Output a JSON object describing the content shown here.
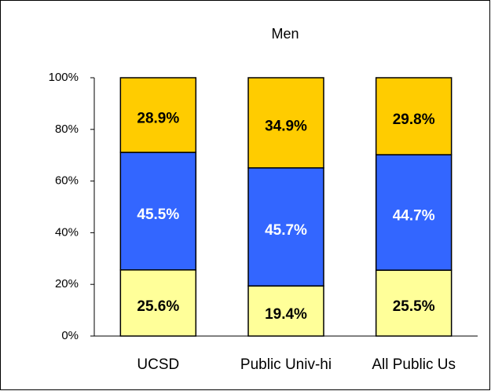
{
  "chart_data": {
    "type": "stacked_bar",
    "title": "Men",
    "categories": [
      "UCSD",
      "Public Univ-hi",
      "All Public Us"
    ],
    "series": [
      {
        "color": "#ffff99",
        "values": [
          25.6,
          19.4,
          25.5
        ],
        "value_labels": [
          "25.6%",
          "19.4%",
          "25.5%"
        ]
      },
      {
        "color": "#3366ff",
        "values": [
          45.5,
          45.7,
          44.7
        ],
        "value_labels": [
          "45.5%",
          "45.7%",
          "44.7%"
        ]
      },
      {
        "color": "#ffcc00",
        "values": [
          28.9,
          34.9,
          29.8
        ],
        "value_labels": [
          "28.9%",
          "34.9%",
          "29.8%"
        ]
      }
    ],
    "ylim": [
      0,
      100
    ],
    "yticks": [
      {
        "value": 0,
        "label": "0%"
      },
      {
        "value": 20,
        "label": "20%"
      },
      {
        "value": 40,
        "label": "40%"
      },
      {
        "value": 60,
        "label": "60%"
      },
      {
        "value": 80,
        "label": "80%"
      },
      {
        "value": 100,
        "label": "100%"
      }
    ]
  }
}
